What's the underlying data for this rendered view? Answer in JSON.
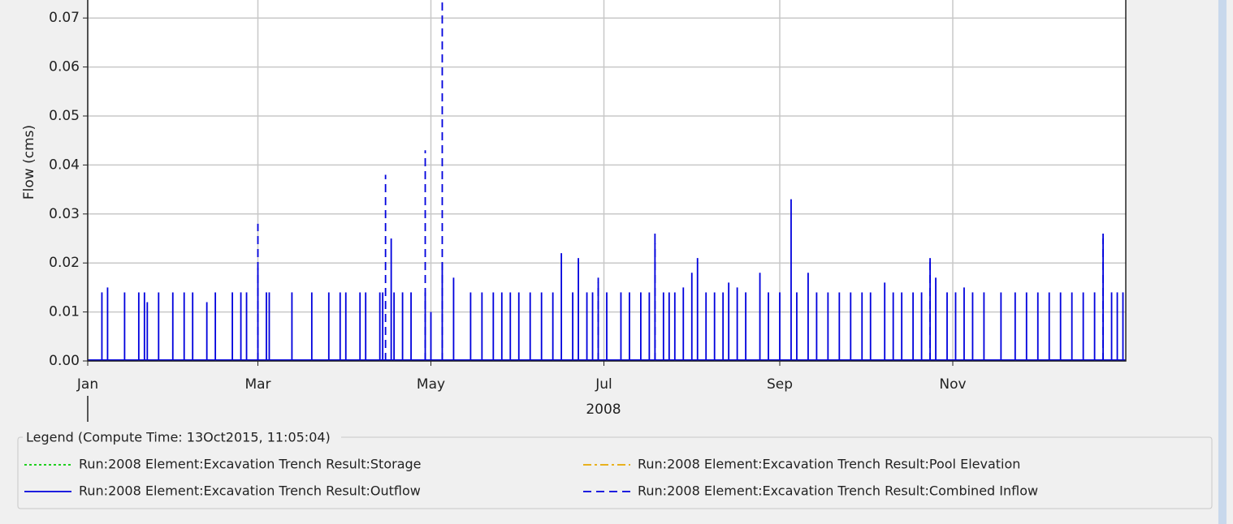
{
  "chart_data": {
    "type": "stem",
    "y_label": "Flow (cms)",
    "x_label": "2008",
    "xlim": [
      0,
      366
    ],
    "xticks": [
      {
        "value": 0,
        "label": "Jan"
      },
      {
        "value": 60,
        "label": "Mar"
      },
      {
        "value": 121,
        "label": "May"
      },
      {
        "value": 182,
        "label": "Jul"
      },
      {
        "value": 244,
        "label": "Sep"
      },
      {
        "value": 305,
        "label": "Nov"
      }
    ],
    "ylim": [
      0,
      0.074
    ],
    "yticks": [
      {
        "value": 0,
        "label": "0.00"
      },
      0.01,
      0.02,
      0.03,
      0.04,
      0.05,
      0.06,
      0.07
    ],
    "grid": true,
    "legend_title": "Legend (Compute Time: 13Oct2015, 11:05:04)",
    "series": [
      {
        "name": "Run:2008 Element:Excavation Trench Result:Storage",
        "color": "#00cc00",
        "line_style": "dotted",
        "x": [],
        "values": []
      },
      {
        "name": "Run:2008 Element:Excavation Trench Result:Pool Elevation",
        "color": "#e6a800",
        "line_style": "dash-dot",
        "x": [],
        "values": []
      },
      {
        "name": "Run:2008 Element:Excavation Trench Result:Outflow",
        "color": "#0000dd",
        "line_style": "solid",
        "x": [
          5,
          7,
          13,
          18,
          20,
          21,
          25,
          30,
          34,
          37,
          42,
          45,
          51,
          54,
          56,
          60,
          63,
          64,
          72,
          79,
          85,
          89,
          91,
          96,
          98,
          103,
          104,
          107,
          108,
          111,
          114,
          119,
          121,
          125,
          129,
          135,
          139,
          143,
          146,
          149,
          152,
          156,
          160,
          164,
          167,
          171,
          173,
          176,
          178,
          180,
          183,
          188,
          191,
          195,
          198,
          200,
          203,
          205,
          207,
          210,
          213,
          215,
          218,
          221,
          224,
          226,
          229,
          232,
          237,
          240,
          244,
          248,
          250,
          254,
          257,
          261,
          265,
          269,
          273,
          276,
          281,
          284,
          287,
          291,
          294,
          297,
          299,
          303,
          306,
          309,
          312,
          316,
          322,
          327,
          331,
          335,
          339,
          343,
          347,
          351,
          355,
          358,
          361,
          363,
          365
        ],
        "values": [
          0.014,
          0.015,
          0.014,
          0.014,
          0.014,
          0.012,
          0.014,
          0.014,
          0.014,
          0.014,
          0.012,
          0.014,
          0.014,
          0.014,
          0.014,
          0.019,
          0.014,
          0.014,
          0.014,
          0.014,
          0.014,
          0.014,
          0.014,
          0.014,
          0.014,
          0.014,
          0.014,
          0.025,
          0.014,
          0.014,
          0.014,
          0.014,
          0.01,
          0.02,
          0.017,
          0.014,
          0.014,
          0.014,
          0.014,
          0.014,
          0.014,
          0.014,
          0.014,
          0.014,
          0.022,
          0.014,
          0.021,
          0.014,
          0.014,
          0.017,
          0.014,
          0.014,
          0.014,
          0.014,
          0.014,
          0.026,
          0.014,
          0.014,
          0.014,
          0.015,
          0.018,
          0.021,
          0.014,
          0.014,
          0.014,
          0.016,
          0.015,
          0.014,
          0.018,
          0.014,
          0.014,
          0.033,
          0.014,
          0.018,
          0.014,
          0.014,
          0.014,
          0.014,
          0.014,
          0.014,
          0.016,
          0.014,
          0.014,
          0.014,
          0.014,
          0.021,
          0.017,
          0.014,
          0.014,
          0.015,
          0.014,
          0.014,
          0.014,
          0.014,
          0.014,
          0.014,
          0.014,
          0.014,
          0.014,
          0.014,
          0.014,
          0.026,
          0.014,
          0.014,
          0.014
        ]
      },
      {
        "name": "Run:2008 Element:Excavation Trench Result:Combined Inflow",
        "color": "#0000dd",
        "line_style": "dashed",
        "x": [
          60,
          105,
          119,
          125,
          180,
          200,
          297,
          358
        ],
        "values": [
          0.028,
          0.038,
          0.043,
          0.074,
          0.016,
          0.024,
          0.021,
          0.025
        ]
      }
    ]
  }
}
